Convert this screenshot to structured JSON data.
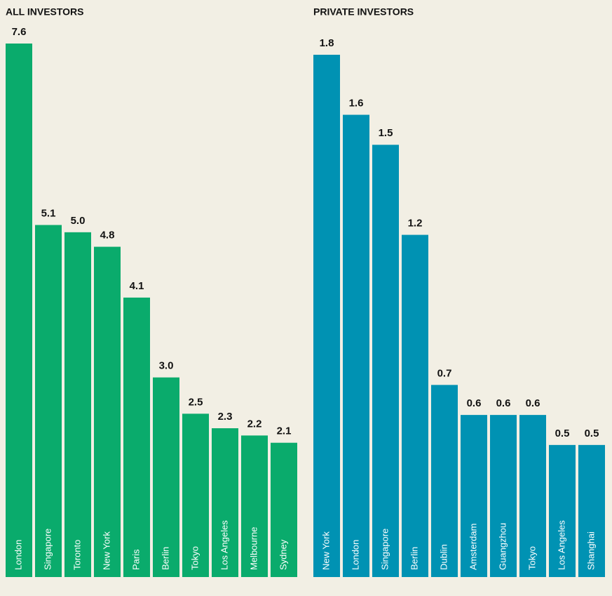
{
  "chart_data": [
    {
      "type": "bar",
      "title": "ALL INVESTORS",
      "categories": [
        "London",
        "Singapore",
        "Toronto",
        "New York",
        "Paris",
        "Berlin",
        "Tokyo",
        "Los Angeles",
        "Melbourne",
        "Sydney"
      ],
      "values": [
        7.6,
        5.1,
        5,
        4.8,
        4.1,
        3,
        2.5,
        2.3,
        2.2,
        2.1
      ],
      "value_labels": [
        "7.6",
        "5.1",
        "5.0",
        "4.8",
        "4.1",
        "3.0",
        "2.5",
        "2.3",
        "2.2",
        "2.1"
      ],
      "color": "#0aab6c",
      "ylim": [
        0.25,
        7.6
      ]
    },
    {
      "type": "bar",
      "title": "PRIVATE INVESTORS",
      "categories": [
        "New York",
        "London",
        "Singapore",
        "Berlin",
        "Dublin",
        "Amsterdam",
        "Guangzhou",
        "Tokyo",
        "Los Angeles",
        "Shanghai"
      ],
      "values": [
        1.8,
        1.6,
        1.5,
        1.2,
        0.7,
        0.6,
        0.6,
        0.6,
        0.5,
        0.5
      ],
      "value_labels": [
        "1.8",
        "1.6",
        "1.5",
        "1.2",
        "0.7",
        "0.6",
        "0.6",
        "0.6",
        "0.5",
        "0.5"
      ],
      "color": "#0092b3",
      "ylim": [
        0.06,
        1.8
      ]
    }
  ]
}
